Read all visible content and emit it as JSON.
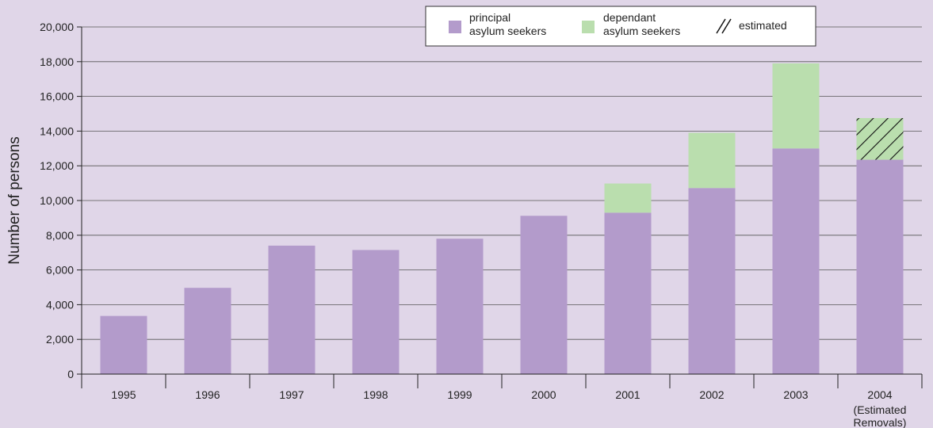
{
  "colors": {
    "background": "#e0d6e8",
    "principal": "#b39bcb",
    "dependant": "#badeae",
    "gridline": "#555555"
  },
  "chart_data": {
    "type": "bar",
    "stacked": true,
    "categories": [
      "1995",
      "1996",
      "1997",
      "1998",
      "1999",
      "2000",
      "2001",
      "2002",
      "2003",
      "2004"
    ],
    "category_sublabels": [
      "",
      "",
      "",
      "",
      "",
      "",
      "",
      "",
      "",
      "(Estimated Removals)"
    ],
    "series": [
      {
        "name": "principal asylum seekers",
        "values": [
          3350,
          4970,
          7400,
          7150,
          7800,
          9120,
          9300,
          10720,
          13000,
          12350
        ]
      },
      {
        "name": "dependant asylum seekers",
        "values": [
          0,
          0,
          0,
          0,
          0,
          0,
          1680,
          3180,
          4900,
          0
        ]
      },
      {
        "name": "estimated",
        "values": [
          0,
          0,
          0,
          0,
          0,
          0,
          0,
          0,
          0,
          2400
        ]
      }
    ],
    "xlabel": "",
    "ylabel": "Number of persons",
    "ylim": [
      0,
      20000
    ],
    "yticks": [
      0,
      2000,
      4000,
      6000,
      8000,
      10000,
      12000,
      14000,
      16000,
      18000,
      20000
    ],
    "ytick_labels": [
      "0",
      "2,000",
      "4,000",
      "6,000",
      "8,000",
      "10,000",
      "12,000",
      "14,000",
      "16,000",
      "18,000",
      "20,000"
    ],
    "grid": true,
    "legend": {
      "placement": "top-center",
      "entries": [
        {
          "key": "principal",
          "lines": [
            "principal",
            "asylum seekers"
          ]
        },
        {
          "key": "dependant",
          "lines": [
            "dependant",
            "asylum seekers"
          ]
        },
        {
          "key": "estimated",
          "lines": [
            "estimated"
          ]
        }
      ]
    }
  }
}
